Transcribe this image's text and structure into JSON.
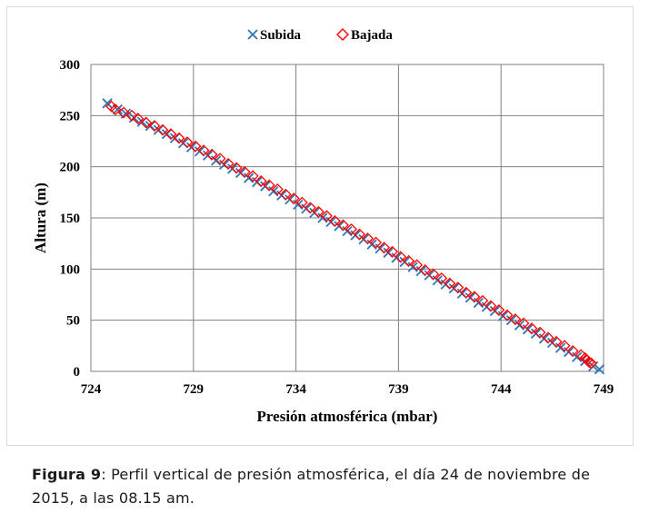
{
  "chart_data": {
    "type": "scatter",
    "title": "",
    "xlabel": "Presión atmosférica  (mbar)",
    "ylabel": "Altura  (m)",
    "xlim": [
      724,
      749
    ],
    "ylim": [
      0,
      300
    ],
    "x_ticks": [
      724,
      729,
      734,
      739,
      744,
      749
    ],
    "y_ticks": [
      0,
      50,
      100,
      150,
      200,
      250,
      300
    ],
    "grid": true,
    "legend_position": "top-center",
    "series": [
      {
        "name": "Subida",
        "marker": "x",
        "color": "#2E75B6",
        "points": [
          [
            724.8,
            262
          ],
          [
            725.3,
            256
          ],
          [
            725.7,
            252
          ],
          [
            726.1,
            248
          ],
          [
            726.5,
            244
          ],
          [
            726.9,
            240
          ],
          [
            727.3,
            236
          ],
          [
            727.7,
            232
          ],
          [
            728.1,
            228
          ],
          [
            728.5,
            223
          ],
          [
            728.9,
            219
          ],
          [
            729.3,
            215
          ],
          [
            729.7,
            211
          ],
          [
            730.1,
            206
          ],
          [
            730.5,
            202
          ],
          [
            730.9,
            198
          ],
          [
            731.3,
            194
          ],
          [
            731.7,
            189
          ],
          [
            732.1,
            185
          ],
          [
            732.5,
            181
          ],
          [
            732.9,
            176
          ],
          [
            733.3,
            172
          ],
          [
            733.7,
            168
          ],
          [
            734.1,
            163
          ],
          [
            734.5,
            159
          ],
          [
            734.9,
            155
          ],
          [
            735.3,
            150
          ],
          [
            735.7,
            146
          ],
          [
            736.1,
            142
          ],
          [
            736.5,
            137
          ],
          [
            736.9,
            133
          ],
          [
            737.3,
            129
          ],
          [
            737.7,
            124
          ],
          [
            738.1,
            120
          ],
          [
            738.5,
            116
          ],
          [
            738.9,
            111
          ],
          [
            739.3,
            107
          ],
          [
            739.7,
            102
          ],
          [
            740.1,
            98
          ],
          [
            740.5,
            94
          ],
          [
            740.9,
            89
          ],
          [
            741.3,
            85
          ],
          [
            741.7,
            81
          ],
          [
            742.1,
            76
          ],
          [
            742.5,
            72
          ],
          [
            742.9,
            67
          ],
          [
            743.3,
            63
          ],
          [
            743.7,
            59
          ],
          [
            744.1,
            54
          ],
          [
            744.5,
            50
          ],
          [
            744.9,
            45
          ],
          [
            745.3,
            41
          ],
          [
            745.7,
            37
          ],
          [
            746.1,
            32
          ],
          [
            746.5,
            28
          ],
          [
            746.9,
            23
          ],
          [
            747.3,
            19
          ],
          [
            747.7,
            14
          ],
          [
            748.1,
            10
          ],
          [
            748.5,
            5
          ],
          [
            748.8,
            2
          ]
        ]
      },
      {
        "name": "Bajada",
        "marker": "diamond",
        "color": "#FF0000",
        "points": [
          [
            725.0,
            259
          ],
          [
            725.2,
            256
          ],
          [
            725.6,
            253
          ],
          [
            726.0,
            250
          ],
          [
            726.3,
            247
          ],
          [
            726.7,
            243
          ],
          [
            727.1,
            240
          ],
          [
            727.5,
            236
          ],
          [
            727.9,
            232
          ],
          [
            728.3,
            228
          ],
          [
            728.7,
            224
          ],
          [
            729.1,
            220
          ],
          [
            729.5,
            216
          ],
          [
            729.9,
            212
          ],
          [
            730.3,
            208
          ],
          [
            730.7,
            203
          ],
          [
            731.1,
            199
          ],
          [
            731.5,
            195
          ],
          [
            731.9,
            191
          ],
          [
            732.3,
            186
          ],
          [
            732.7,
            182
          ],
          [
            733.1,
            178
          ],
          [
            733.5,
            173
          ],
          [
            733.9,
            169
          ],
          [
            734.3,
            165
          ],
          [
            734.7,
            160
          ],
          [
            735.1,
            156
          ],
          [
            735.5,
            152
          ],
          [
            735.9,
            147
          ],
          [
            736.3,
            143
          ],
          [
            736.7,
            139
          ],
          [
            737.1,
            134
          ],
          [
            737.5,
            130
          ],
          [
            737.9,
            126
          ],
          [
            738.3,
            121
          ],
          [
            738.7,
            117
          ],
          [
            739.1,
            112
          ],
          [
            739.5,
            108
          ],
          [
            739.9,
            104
          ],
          [
            740.3,
            99
          ],
          [
            740.7,
            95
          ],
          [
            741.1,
            91
          ],
          [
            741.5,
            86
          ],
          [
            741.9,
            82
          ],
          [
            742.3,
            77
          ],
          [
            742.7,
            73
          ],
          [
            743.1,
            69
          ],
          [
            743.5,
            64
          ],
          [
            743.9,
            60
          ],
          [
            744.3,
            55
          ],
          [
            744.7,
            51
          ],
          [
            745.1,
            47
          ],
          [
            745.5,
            42
          ],
          [
            745.9,
            38
          ],
          [
            746.3,
            33
          ],
          [
            746.7,
            29
          ],
          [
            747.1,
            25
          ],
          [
            747.5,
            20
          ],
          [
            747.9,
            16
          ],
          [
            748.1,
            13
          ],
          [
            748.2,
            11
          ],
          [
            748.3,
            9
          ],
          [
            748.4,
            8
          ]
        ]
      }
    ]
  },
  "caption": {
    "label": "Figura 9",
    "text": ": Perfil vertical de presión atmosférica, el día 24 de noviembre de 2015, a las 08.15 am."
  }
}
